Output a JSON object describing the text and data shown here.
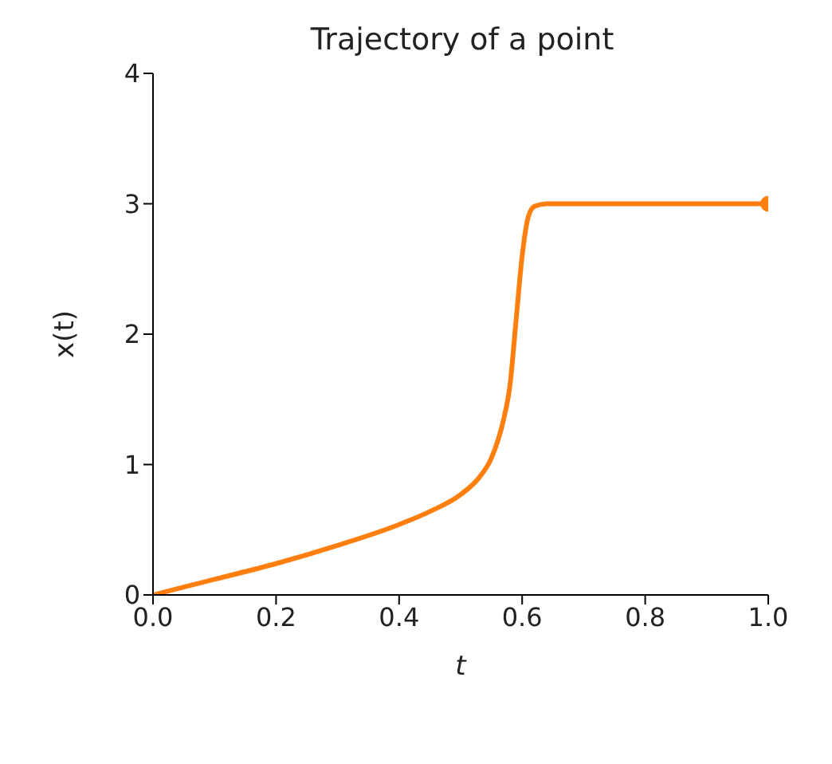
{
  "chart_data": {
    "type": "line",
    "title": "Trajectory of a point",
    "xlabel": "t",
    "ylabel": "x(t)",
    "series": [
      {
        "color": "#ff7f0e",
        "x": [
          0,
          0.1,
          0.2,
          0.3,
          0.4,
          0.45,
          0.5,
          0.53,
          0.55,
          0.57,
          0.58,
          0.59,
          0.6,
          0.61,
          0.62,
          0.64,
          0.8,
          1.0
        ],
        "values": [
          0,
          0.12,
          0.24,
          0.38,
          0.54,
          0.64,
          0.77,
          0.9,
          1.05,
          1.35,
          1.6,
          2.1,
          2.6,
          2.9,
          2.98,
          3,
          3,
          3
        ]
      },
      {
        "type": "scatter",
        "marker": "circle",
        "color": "#ff7f0e",
        "x": [
          1.0
        ],
        "values": [
          3
        ]
      }
    ],
    "xlim": [
      0,
      1
    ],
    "xticks": [
      {
        "value": 0,
        "label": "0.0"
      },
      0.2,
      0.4,
      0.6,
      0.8,
      {
        "value": 1,
        "label": "1.0"
      }
    ],
    "ylim": [
      0,
      4
    ],
    "yticks": [
      0,
      1,
      2,
      3,
      4
    ],
    "grid": false,
    "line_style": "solid"
  }
}
